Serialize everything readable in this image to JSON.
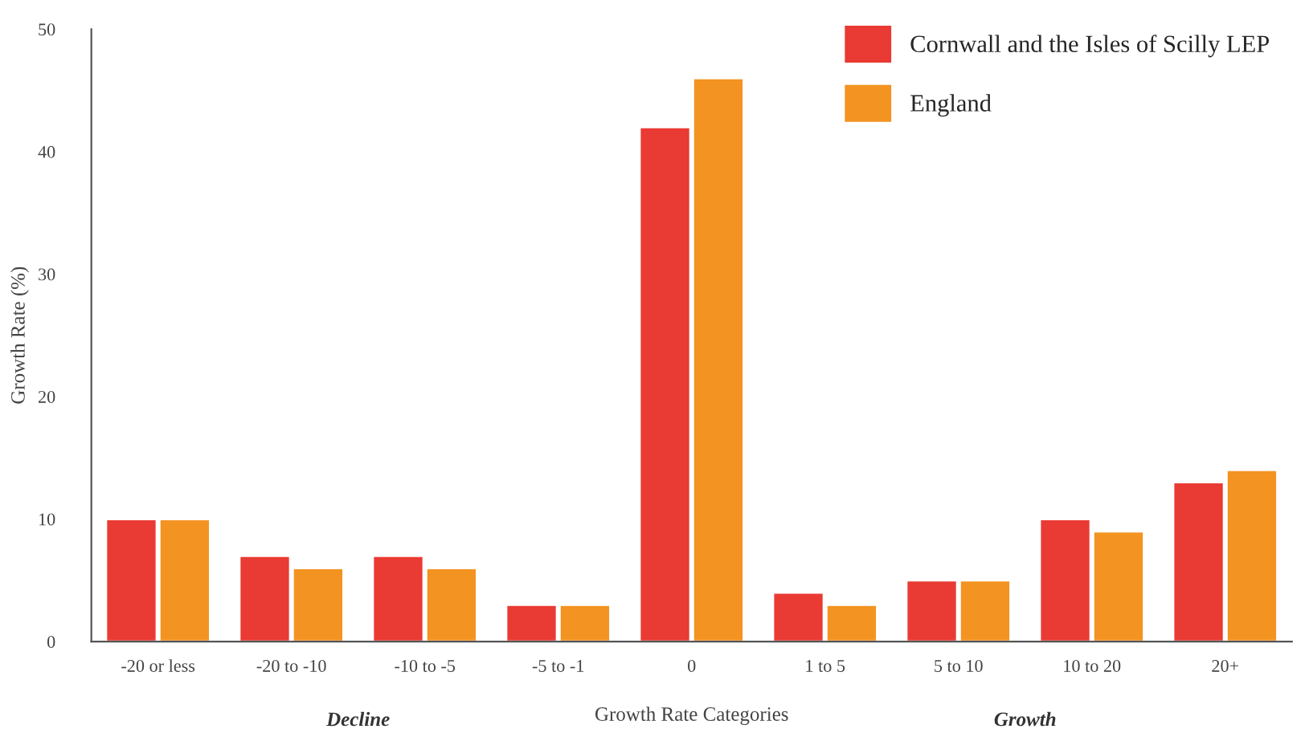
{
  "chart_data": {
    "type": "bar",
    "xlabel": "Growth Rate Categories",
    "ylabel": "Growth Rate (%)",
    "categories": [
      "-20 or less",
      "-20 to -10",
      "-10 to -5",
      "-5 to -1",
      "0",
      "1 to 5",
      "5 to 10",
      "10 to 20",
      "20+"
    ],
    "series": [
      {
        "name": "Cornwall and the Isles of Scilly LEP",
        "color": "#e93a33",
        "values": [
          10,
          7,
          7,
          3,
          42,
          4,
          5,
          10,
          13
        ]
      },
      {
        "name": "England",
        "color": "#f39321",
        "values": [
          10,
          6,
          6,
          3,
          46,
          3,
          5,
          9,
          14
        ]
      }
    ],
    "ylim": [
      0,
      50
    ],
    "yticks": [
      0,
      10,
      20,
      30,
      40,
      50
    ],
    "grid": false,
    "legend": "top right",
    "annotations": [
      "Decline",
      "Growth"
    ]
  }
}
